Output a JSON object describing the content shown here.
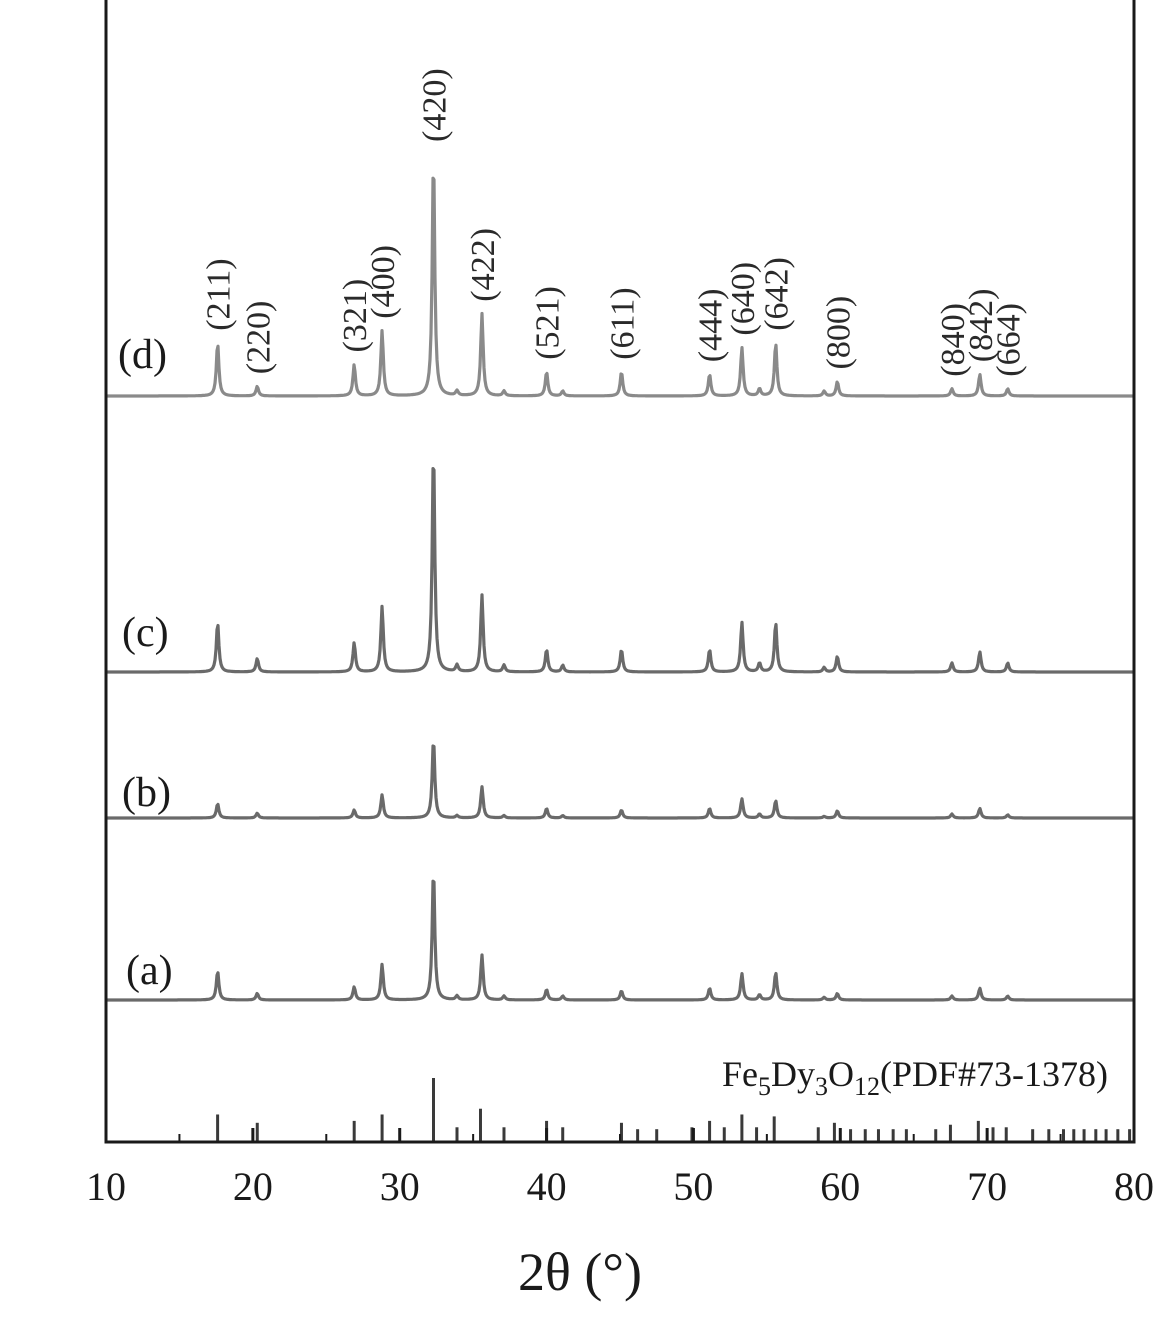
{
  "chart_data": {
    "type": "line",
    "xlabel": "2θ (°)",
    "ylabel": "",
    "xlim": [
      10,
      80
    ],
    "x_ticks": [
      10,
      20,
      30,
      40,
      50,
      60,
      70,
      80
    ],
    "x_tick_labels": [
      "10",
      "20",
      "30",
      "40",
      "50",
      "60",
      "70",
      "80"
    ],
    "y_ticks_shown": false,
    "grid": false,
    "legend": "none",
    "series": [
      {
        "name": "(d)",
        "color": "#8a8a8a",
        "peaks": [
          {
            "x": 17.6,
            "h": 0.22
          },
          {
            "x": 20.3,
            "h": 0.04
          },
          {
            "x": 26.9,
            "h": 0.13
          },
          {
            "x": 28.8,
            "h": 0.27
          },
          {
            "x": 32.3,
            "h": 1.0
          },
          {
            "x": 33.9,
            "h": 0.02
          },
          {
            "x": 35.6,
            "h": 0.34
          },
          {
            "x": 37.1,
            "h": 0.02
          },
          {
            "x": 40.0,
            "h": 0.1
          },
          {
            "x": 41.1,
            "h": 0.02
          },
          {
            "x": 45.1,
            "h": 0.1
          },
          {
            "x": 51.1,
            "h": 0.09
          },
          {
            "x": 53.3,
            "h": 0.2
          },
          {
            "x": 54.5,
            "h": 0.03
          },
          {
            "x": 55.6,
            "h": 0.22
          },
          {
            "x": 58.9,
            "h": 0.02
          },
          {
            "x": 59.8,
            "h": 0.06
          },
          {
            "x": 67.6,
            "h": 0.03
          },
          {
            "x": 69.5,
            "h": 0.09
          },
          {
            "x": 71.4,
            "h": 0.03
          }
        ]
      },
      {
        "name": "(c)",
        "color": "#6a6a6a",
        "peaks": [
          {
            "x": 17.6,
            "h": 0.22
          },
          {
            "x": 20.3,
            "h": 0.06
          },
          {
            "x": 26.9,
            "h": 0.13
          },
          {
            "x": 28.8,
            "h": 0.29
          },
          {
            "x": 32.3,
            "h": 1.0
          },
          {
            "x": 33.9,
            "h": 0.03
          },
          {
            "x": 35.6,
            "h": 0.34
          },
          {
            "x": 37.1,
            "h": 0.03
          },
          {
            "x": 40.0,
            "h": 0.1
          },
          {
            "x": 41.1,
            "h": 0.03
          },
          {
            "x": 45.1,
            "h": 0.1
          },
          {
            "x": 51.1,
            "h": 0.1
          },
          {
            "x": 53.3,
            "h": 0.22
          },
          {
            "x": 54.5,
            "h": 0.04
          },
          {
            "x": 55.6,
            "h": 0.22
          },
          {
            "x": 58.9,
            "h": 0.02
          },
          {
            "x": 59.8,
            "h": 0.07
          },
          {
            "x": 67.6,
            "h": 0.04
          },
          {
            "x": 69.5,
            "h": 0.09
          },
          {
            "x": 71.4,
            "h": 0.04
          }
        ]
      },
      {
        "name": "(b)",
        "color": "#6a6a6a",
        "peaks": [
          {
            "x": 17.6,
            "h": 0.18
          },
          {
            "x": 20.3,
            "h": 0.06
          },
          {
            "x": 26.9,
            "h": 0.1
          },
          {
            "x": 28.8,
            "h": 0.29
          },
          {
            "x": 32.3,
            "h": 1.0
          },
          {
            "x": 33.9,
            "h": 0.03
          },
          {
            "x": 35.6,
            "h": 0.39
          },
          {
            "x": 37.1,
            "h": 0.03
          },
          {
            "x": 40.0,
            "h": 0.12
          },
          {
            "x": 41.1,
            "h": 0.03
          },
          {
            "x": 45.1,
            "h": 0.1
          },
          {
            "x": 51.1,
            "h": 0.12
          },
          {
            "x": 53.3,
            "h": 0.24
          },
          {
            "x": 54.5,
            "h": 0.05
          },
          {
            "x": 55.6,
            "h": 0.22
          },
          {
            "x": 58.9,
            "h": 0.02
          },
          {
            "x": 59.8,
            "h": 0.09
          },
          {
            "x": 67.6,
            "h": 0.05
          },
          {
            "x": 69.5,
            "h": 0.12
          },
          {
            "x": 71.4,
            "h": 0.04
          }
        ]
      },
      {
        "name": "(a)",
        "color": "#6a6a6a",
        "peaks": [
          {
            "x": 17.6,
            "h": 0.22
          },
          {
            "x": 20.3,
            "h": 0.05
          },
          {
            "x": 26.9,
            "h": 0.1
          },
          {
            "x": 28.8,
            "h": 0.27
          },
          {
            "x": 32.3,
            "h": 1.0
          },
          {
            "x": 33.9,
            "h": 0.03
          },
          {
            "x": 35.6,
            "h": 0.34
          },
          {
            "x": 37.1,
            "h": 0.03
          },
          {
            "x": 40.0,
            "h": 0.08
          },
          {
            "x": 41.1,
            "h": 0.03
          },
          {
            "x": 45.1,
            "h": 0.07
          },
          {
            "x": 51.1,
            "h": 0.09
          },
          {
            "x": 53.3,
            "h": 0.2
          },
          {
            "x": 54.5,
            "h": 0.04
          },
          {
            "x": 55.6,
            "h": 0.21
          },
          {
            "x": 58.9,
            "h": 0.02
          },
          {
            "x": 59.8,
            "h": 0.05
          },
          {
            "x": 67.6,
            "h": 0.03
          },
          {
            "x": 69.5,
            "h": 0.09
          },
          {
            "x": 71.4,
            "h": 0.03
          }
        ]
      }
    ],
    "hkl_labels": [
      {
        "text": "(211)",
        "x": 17.6
      },
      {
        "text": "(220)",
        "x": 20.3
      },
      {
        "text": "(321)",
        "x": 26.9
      },
      {
        "text": "(400)",
        "x": 28.8
      },
      {
        "text": "(420)",
        "x": 32.3
      },
      {
        "text": "(422)",
        "x": 35.6
      },
      {
        "text": "(521)",
        "x": 40.0
      },
      {
        "text": "(611)",
        "x": 45.1
      },
      {
        "text": "(444)",
        "x": 51.1
      },
      {
        "text": "(640)",
        "x": 53.3
      },
      {
        "text": "(642)",
        "x": 55.6
      },
      {
        "text": "(800)",
        "x": 59.8
      },
      {
        "text": "(840)",
        "x": 67.6
      },
      {
        "text": "(842)",
        "x": 69.5
      },
      {
        "text": "(664)",
        "x": 71.4
      }
    ],
    "reference": {
      "label_parts": [
        {
          "t": "Fe",
          "sub": false
        },
        {
          "t": "5",
          "sub": true
        },
        {
          "t": "Dy",
          "sub": false
        },
        {
          "t": "3",
          "sub": true
        },
        {
          "t": "O",
          "sub": false
        },
        {
          "t": "12",
          "sub": true
        },
        {
          "t": "(PDF#73-1378)",
          "sub": false
        }
      ],
      "color": "#3a3a3a",
      "lines": [
        {
          "x": 17.6,
          "h": 0.43
        },
        {
          "x": 20.3,
          "h": 0.3
        },
        {
          "x": 26.9,
          "h": 0.33
        },
        {
          "x": 28.8,
          "h": 0.43
        },
        {
          "x": 32.3,
          "h": 1.0
        },
        {
          "x": 33.9,
          "h": 0.23
        },
        {
          "x": 35.5,
          "h": 0.52
        },
        {
          "x": 37.1,
          "h": 0.23
        },
        {
          "x": 40.0,
          "h": 0.33
        },
        {
          "x": 41.1,
          "h": 0.23
        },
        {
          "x": 45.1,
          "h": 0.3
        },
        {
          "x": 46.2,
          "h": 0.2
        },
        {
          "x": 47.5,
          "h": 0.2
        },
        {
          "x": 49.9,
          "h": 0.23
        },
        {
          "x": 51.1,
          "h": 0.33
        },
        {
          "x": 52.1,
          "h": 0.23
        },
        {
          "x": 53.3,
          "h": 0.43
        },
        {
          "x": 54.3,
          "h": 0.23
        },
        {
          "x": 55.5,
          "h": 0.4
        },
        {
          "x": 58.5,
          "h": 0.23
        },
        {
          "x": 59.6,
          "h": 0.3
        },
        {
          "x": 60.7,
          "h": 0.2
        },
        {
          "x": 61.7,
          "h": 0.2
        },
        {
          "x": 62.6,
          "h": 0.2
        },
        {
          "x": 63.6,
          "h": 0.2
        },
        {
          "x": 64.5,
          "h": 0.2
        },
        {
          "x": 66.5,
          "h": 0.2
        },
        {
          "x": 67.5,
          "h": 0.27
        },
        {
          "x": 69.4,
          "h": 0.33
        },
        {
          "x": 70.4,
          "h": 0.23
        },
        {
          "x": 71.3,
          "h": 0.23
        },
        {
          "x": 73.1,
          "h": 0.2
        },
        {
          "x": 74.2,
          "h": 0.2
        },
        {
          "x": 75.2,
          "h": 0.2
        },
        {
          "x": 75.9,
          "h": 0.2
        },
        {
          "x": 76.6,
          "h": 0.2
        },
        {
          "x": 77.4,
          "h": 0.2
        },
        {
          "x": 78.1,
          "h": 0.2
        },
        {
          "x": 78.9,
          "h": 0.2
        },
        {
          "x": 79.7,
          "h": 0.2
        }
      ]
    }
  }
}
